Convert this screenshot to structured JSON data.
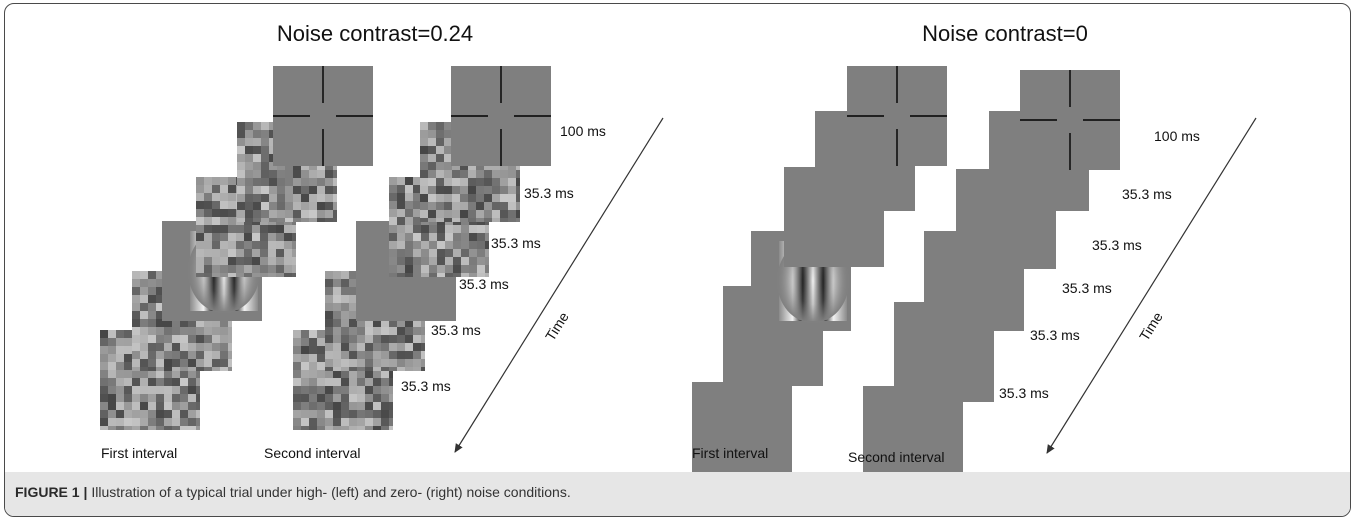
{
  "left_panel": {
    "title": "Noise contrast=0.24",
    "durations": [
      "100 ms",
      "35.3 ms",
      "35.3 ms",
      "35.3 ms",
      "35.3 ms",
      "35.3 ms"
    ],
    "axis_label": "Time",
    "interval_labels": [
      "First  interval",
      "Second interval"
    ]
  },
  "right_panel": {
    "title": "Noise contrast=0",
    "durations": [
      "100 ms",
      "35.3 ms",
      "35.3 ms",
      "35.3 ms",
      "35.3 ms",
      "35.3 ms"
    ],
    "axis_label": "Time",
    "interval_labels": [
      "First  interval",
      "Second interval"
    ]
  },
  "caption": {
    "label": "FIGURE 1",
    "separator": "|",
    "text": "Illustration of a typical trial under high- (left) and zero- (right) noise conditions."
  },
  "colors": {
    "frame_gray": "#7f7f7f",
    "caption_background": "#e6e6e6",
    "arrow": "#333333"
  }
}
